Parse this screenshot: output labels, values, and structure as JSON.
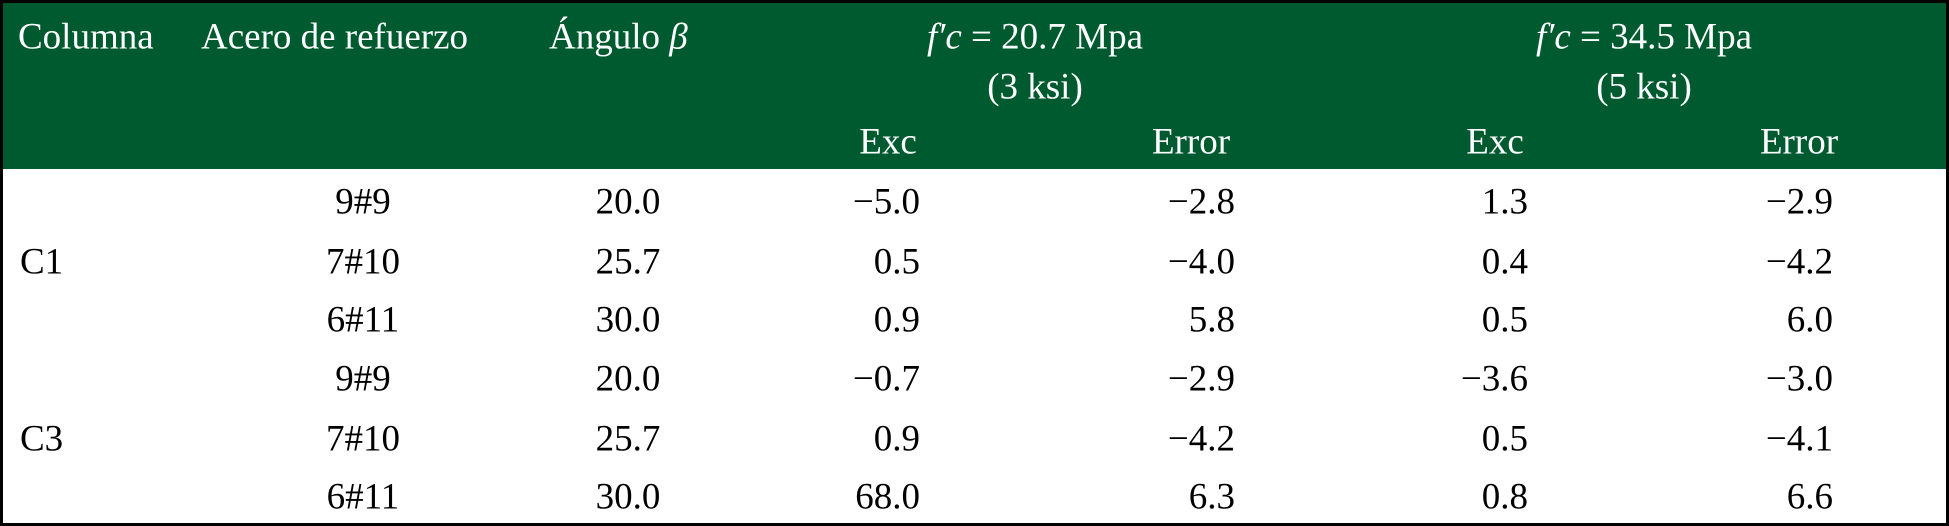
{
  "table": {
    "header": {
      "column": "Columna",
      "steel": "Acero de refuerzo",
      "angle": {
        "text": "Ángulo",
        "symbol": "β"
      },
      "groups": [
        {
          "symbol": "f′c",
          "text": "= 20.7 Mpa",
          "units": "(3 ksi)",
          "sub": [
            "Exc",
            "Error"
          ]
        },
        {
          "symbol": "f′c",
          "text": "= 34.5 Mpa",
          "units": "(5 ksi)",
          "sub": [
            "Exc",
            "Error"
          ]
        }
      ]
    },
    "sections": [
      {
        "column": "C1",
        "rows": [
          [
            "9#9",
            "20.0",
            "−5.0",
            "−2.8",
            "1.3",
            "−2.9"
          ],
          [
            "7#10",
            "25.7",
            "0.5",
            "−4.0",
            "0.4",
            "−4.2"
          ],
          [
            "6#11",
            "30.0",
            "0.9",
            "5.8",
            "0.5",
            "6.0"
          ]
        ]
      },
      {
        "column": "C3",
        "rows": [
          [
            "9#9",
            "20.0",
            "−0.7",
            "−2.9",
            "−3.6",
            "−3.0"
          ],
          [
            "7#10",
            "25.7",
            "0.9",
            "−4.2",
            "0.5",
            "−4.1"
          ],
          [
            "6#11",
            "30.0",
            "68.0",
            "6.3",
            "0.8",
            "6.6"
          ]
        ]
      }
    ]
  }
}
